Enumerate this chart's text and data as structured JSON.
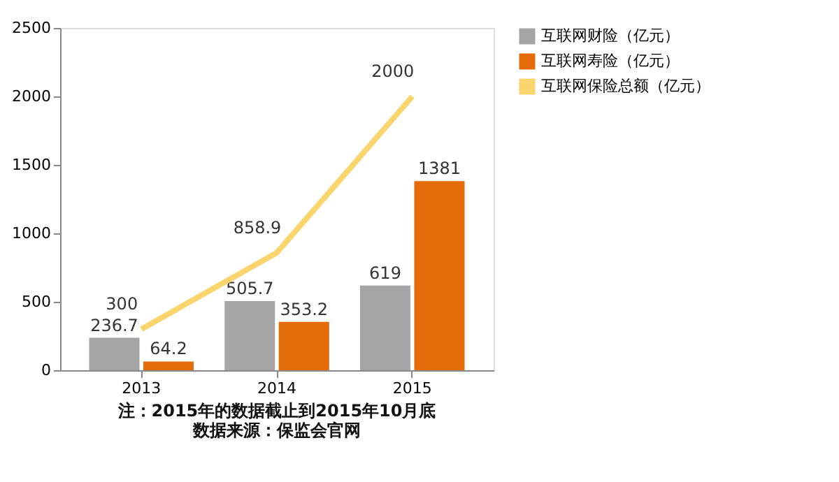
{
  "chart_data": {
    "type": "bar",
    "categories": [
      "2013",
      "2014",
      "2015"
    ],
    "series": [
      {
        "name": "互联网财险（亿元）",
        "color": "#a5a5a5",
        "values": [
          236.7,
          505.7,
          619
        ]
      },
      {
        "name": "互联网寿险（亿元）",
        "color": "#e46c0a",
        "values": [
          64.2,
          353.2,
          1381
        ]
      },
      {
        "name": "互联网保险总额（亿元）",
        "color": "#fad56e",
        "type": "line",
        "values": [
          300,
          858.9,
          2000
        ]
      }
    ],
    "ylim": [
      0,
      2500
    ],
    "yticks": [
      0,
      500,
      1000,
      1500,
      2000,
      2500
    ],
    "grid": false,
    "legend": "right",
    "data_labels": true,
    "marker": "none",
    "line_style": "solid",
    "annotations": [
      "注：2015年的数据截止到2015年10月底",
      "数据来源：保监会官网"
    ]
  }
}
